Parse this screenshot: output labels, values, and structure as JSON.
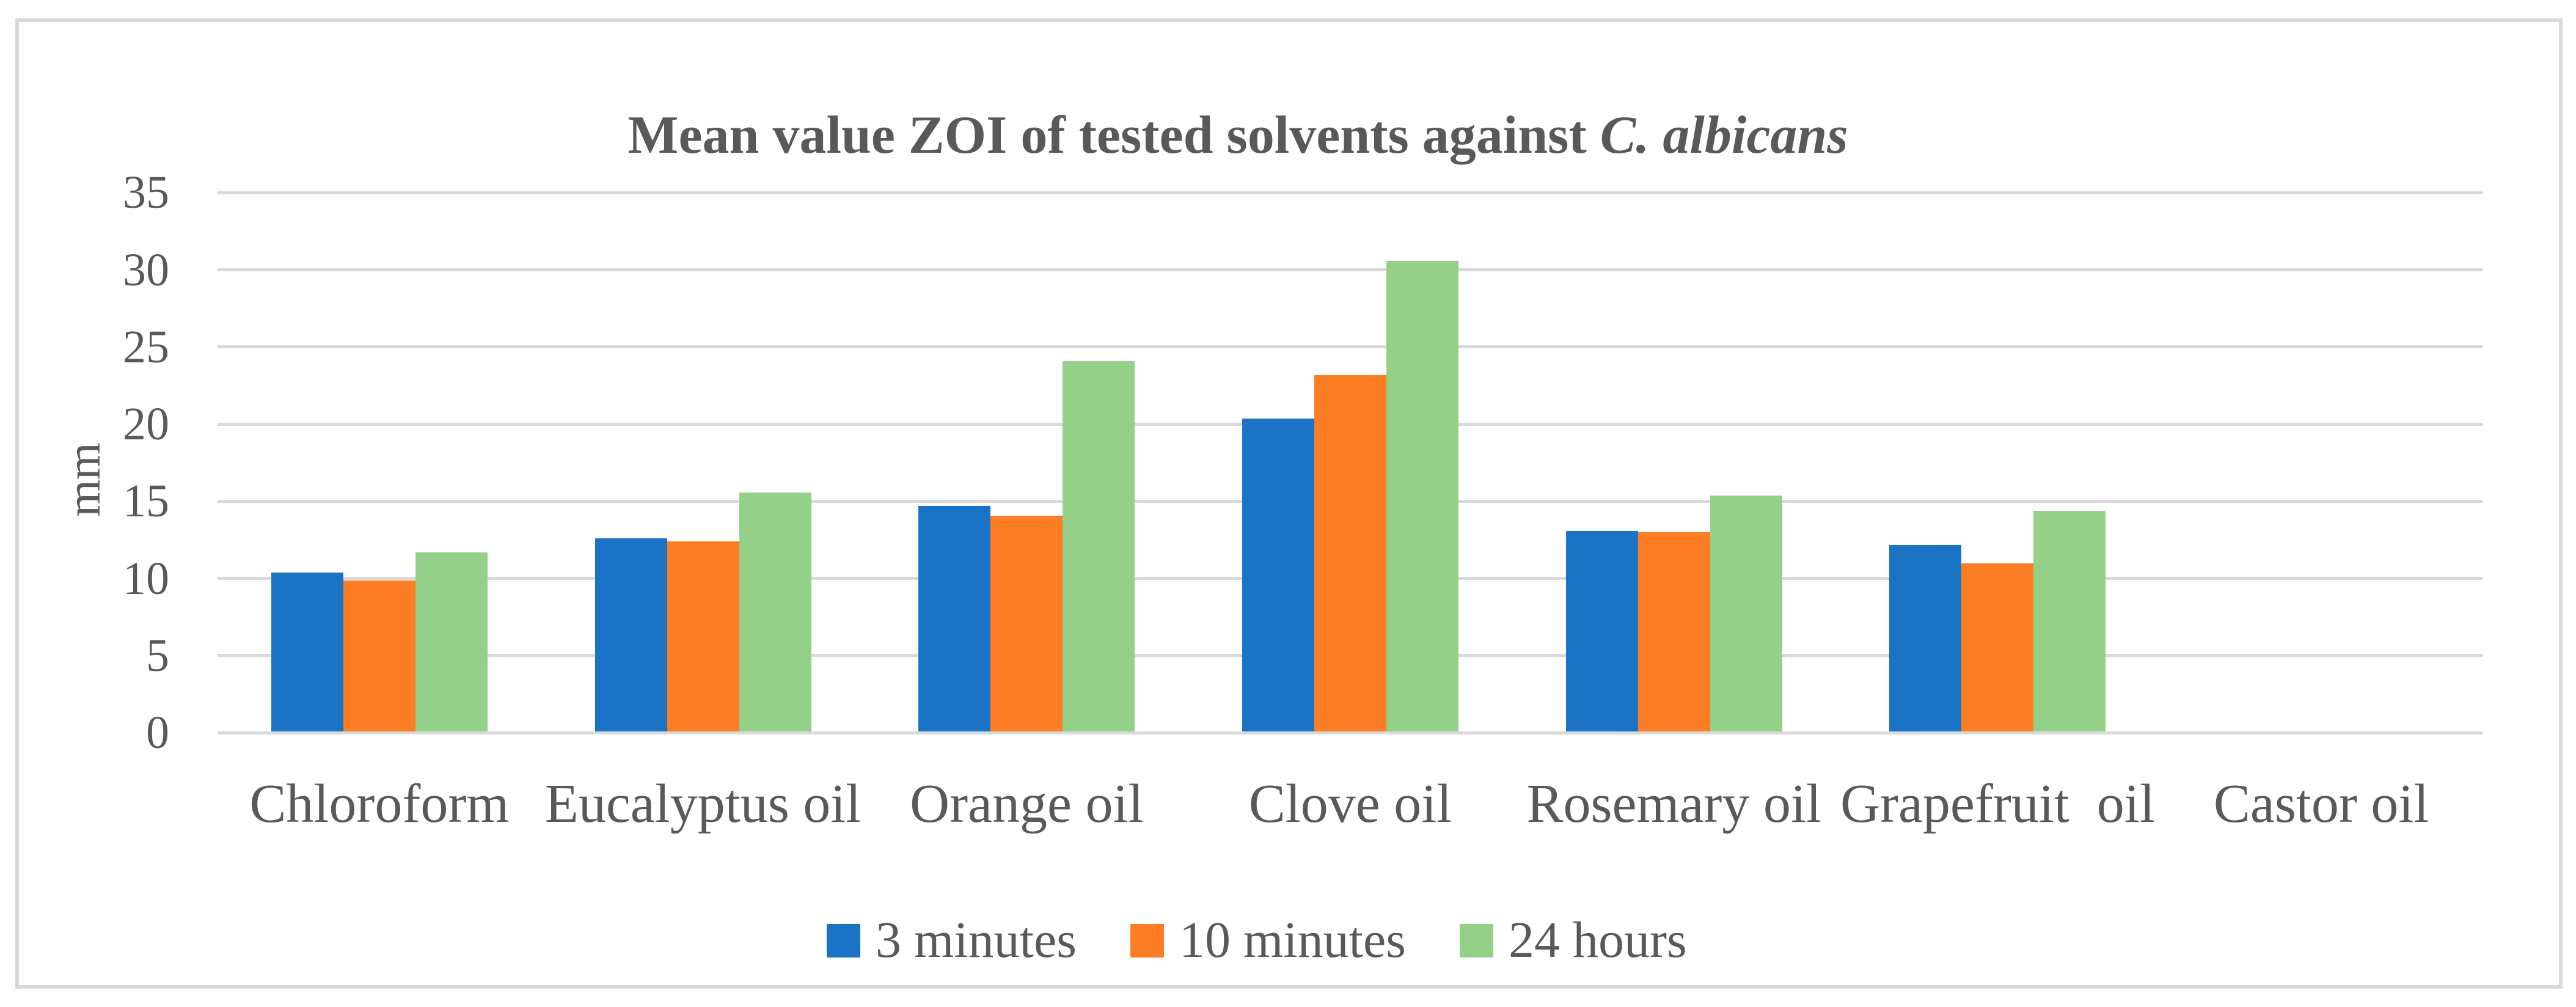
{
  "figure": {
    "title_main": "Mean value ZOI of tested solvents against ",
    "title_italic": "C. albicans",
    "ylabel": "mm"
  },
  "chart_data": {
    "type": "bar",
    "title": "Mean value ZOI of tested solvents against C. albicans",
    "title_italic_part": "C. albicans",
    "xlabel": "",
    "ylabel": "mm",
    "ylim": [
      0,
      35
    ],
    "ytick_step": 5,
    "yticks": [
      0,
      5,
      10,
      15,
      20,
      25,
      30,
      35
    ],
    "grid": "horizontal",
    "legend_position": "bottom",
    "categories": [
      "Chloroform",
      "Eucalyptus oil",
      "Orange oil",
      "Clove oil",
      "Rosemary oil",
      "Grapefruit  oil",
      "Castor oil"
    ],
    "series": [
      {
        "name": "3 minutes",
        "color": "#1b73c5",
        "values": [
          10.3,
          12.5,
          14.6,
          20.3,
          13.0,
          12.1,
          0
        ]
      },
      {
        "name": "10 minutes",
        "color": "#fc7d23",
        "values": [
          9.8,
          12.3,
          14.0,
          23.1,
          12.9,
          10.9,
          0
        ]
      },
      {
        "name": "24 hours",
        "color": "#95d088",
        "values": [
          11.6,
          15.5,
          24.0,
          30.5,
          15.3,
          14.3,
          0
        ]
      }
    ],
    "colors": {
      "gridline": "#d9d9d9",
      "axis_text": "#595959",
      "frame": "#d9d9d9"
    }
  }
}
